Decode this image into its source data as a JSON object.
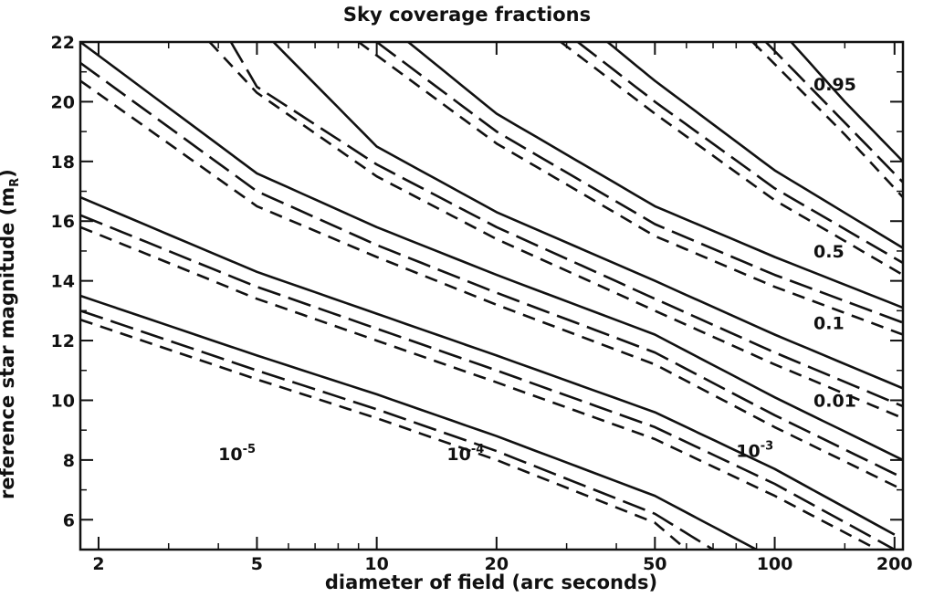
{
  "chart_data": {
    "type": "line",
    "title": "Sky coverage fractions",
    "xlabel": "diameter of field (arc seconds)",
    "ylabel_main": "reference star magnitude (m",
    "ylabel_sub": "R",
    "ylabel_close": ")",
    "xscale": "log",
    "xlim": [
      1.8,
      210
    ],
    "ylim": [
      5,
      22
    ],
    "xticks": [
      2,
      5,
      10,
      20,
      50,
      100,
      200
    ],
    "yticks": [
      6,
      8,
      10,
      12,
      14,
      16,
      18,
      20,
      22
    ],
    "line_styles": [
      "solid",
      "long-dash",
      "short-dash"
    ],
    "fraction_labels": [
      "0.95",
      "0.5",
      "0.1",
      "0.01"
    ],
    "fraction_labels_y": [
      20.6,
      15.0,
      12.6,
      10.0
    ],
    "curves": [
      {
        "label_base": "10",
        "label_exp": "-5",
        "label_x": 4.0,
        "label_y": 8.0,
        "lines": [
          {
            "style": "solid",
            "x": [
              1.8,
              5,
              10,
              20,
              50,
              90
            ],
            "y": [
              13.5,
              11.5,
              10.2,
              8.8,
              6.8,
              5.0
            ]
          },
          {
            "style": "long-dash",
            "x": [
              1.8,
              5,
              10,
              20,
              50,
              70
            ],
            "y": [
              13.0,
              11.0,
              9.7,
              8.3,
              6.2,
              5.0
            ]
          },
          {
            "style": "short-dash",
            "x": [
              1.8,
              5,
              10,
              20,
              50,
              60
            ],
            "y": [
              12.7,
              10.7,
              9.4,
              8.0,
              5.9,
              5.0
            ]
          }
        ]
      },
      {
        "label_base": "10",
        "label_exp": "-4",
        "label_x": 15.0,
        "label_y": 8.0,
        "lines": [
          {
            "style": "solid",
            "x": [
              1.8,
              5,
              10,
              20,
              50,
              100,
              200
            ],
            "y": [
              16.8,
              14.3,
              12.9,
              11.5,
              9.6,
              7.7,
              5.5
            ]
          },
          {
            "style": "long-dash",
            "x": [
              1.8,
              5,
              10,
              20,
              50,
              100,
              200
            ],
            "y": [
              16.2,
              13.8,
              12.4,
              11.0,
              9.1,
              7.2,
              5.0
            ]
          },
          {
            "style": "short-dash",
            "x": [
              1.8,
              5,
              10,
              20,
              50,
              100,
              200
            ],
            "y": [
              15.8,
              13.4,
              12.0,
              10.6,
              8.7,
              6.8,
              4.7
            ]
          }
        ]
      },
      {
        "label_base": "10",
        "label_exp": "-3",
        "label_x": 80.0,
        "label_y": 8.1,
        "lines": [
          {
            "style": "solid",
            "x": [
              1.8,
              5,
              10,
              20,
              50,
              100,
              210
            ],
            "y": [
              22.0,
              17.6,
              15.8,
              14.2,
              12.2,
              10.1,
              8.0
            ]
          },
          {
            "style": "long-dash",
            "x": [
              1.8,
              5,
              10,
              20,
              50,
              100,
              210
            ],
            "y": [
              21.3,
              17.0,
              15.2,
              13.6,
              11.6,
              9.5,
              7.4
            ]
          },
          {
            "style": "short-dash",
            "x": [
              1.8,
              5,
              10,
              20,
              50,
              100,
              210
            ],
            "y": [
              20.7,
              16.5,
              14.8,
              13.2,
              11.2,
              9.1,
              7.0
            ]
          }
        ]
      },
      {
        "label": "0.01",
        "lines": [
          {
            "style": "solid",
            "x": [
              5.5,
              10,
              20,
              50,
              100,
              210
            ],
            "y": [
              22.0,
              18.5,
              16.3,
              14.0,
              12.2,
              10.4
            ]
          },
          {
            "style": "long-dash",
            "x": [
              4.3,
              5,
              10,
              20,
              50,
              100,
              210
            ],
            "y": [
              22.0,
              20.5,
              17.9,
              15.8,
              13.4,
              11.6,
              9.8
            ]
          },
          {
            "style": "short-dash",
            "x": [
              3.8,
              5,
              10,
              20,
              50,
              100,
              210
            ],
            "y": [
              22.0,
              20.3,
              17.5,
              15.4,
              13.0,
              11.2,
              9.4
            ]
          }
        ]
      },
      {
        "label": "0.1",
        "lines": [
          {
            "style": "solid",
            "x": [
              12,
              20,
              50,
              100,
              210
            ],
            "y": [
              22.0,
              19.6,
              16.5,
              14.8,
              13.1
            ]
          },
          {
            "style": "long-dash",
            "x": [
              10,
              20,
              50,
              100,
              210
            ],
            "y": [
              22.0,
              19.0,
              15.9,
              14.2,
              12.6
            ]
          },
          {
            "style": "short-dash",
            "x": [
              9,
              20,
              50,
              100,
              210
            ],
            "y": [
              22.0,
              18.6,
              15.5,
              13.8,
              12.2
            ]
          }
        ]
      },
      {
        "label": "0.5",
        "lines": [
          {
            "style": "solid",
            "x": [
              38,
              50,
              100,
              210
            ],
            "y": [
              22.0,
              20.7,
              17.7,
              15.1
            ]
          },
          {
            "style": "long-dash",
            "x": [
              32,
              50,
              100,
              210
            ],
            "y": [
              22.0,
              20.0,
              17.1,
              14.6
            ]
          },
          {
            "style": "short-dash",
            "x": [
              29,
              50,
              100,
              210
            ],
            "y": [
              22.0,
              19.6,
              16.7,
              14.2
            ]
          }
        ]
      },
      {
        "label": "0.95",
        "lines": [
          {
            "style": "solid",
            "x": [
              110,
              150,
              210
            ],
            "y": [
              22.0,
              20.0,
              18.0
            ]
          },
          {
            "style": "long-dash",
            "x": [
              95,
              150,
              210
            ],
            "y": [
              22.0,
              19.3,
              17.3
            ]
          },
          {
            "style": "short-dash",
            "x": [
              88,
              150,
              210
            ],
            "y": [
              22.0,
              18.9,
              16.8
            ]
          }
        ]
      }
    ]
  }
}
